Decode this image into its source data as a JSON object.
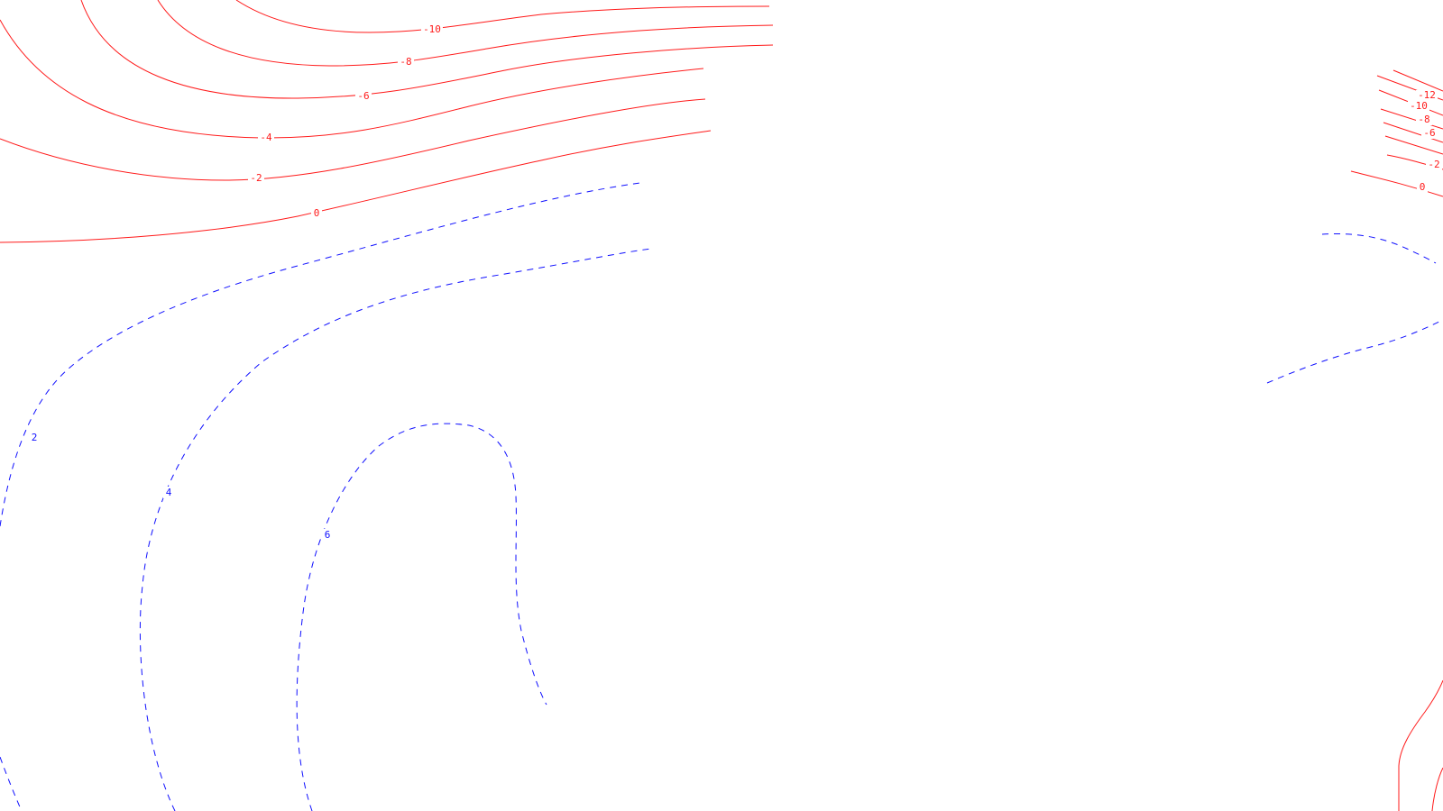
{
  "map": {
    "colors": {
      "negative_contour": "#ff1a1a",
      "positive_contour": "#1010ff",
      "background": "#ffffff"
    },
    "negative_line_style": "solid",
    "positive_line_style": "dashed",
    "labels": {
      "m10": "-10",
      "m8": "-8",
      "m6": "-6",
      "m4": "-4",
      "m2": "-2",
      "z0": "0",
      "p2": "2",
      "p4": "4",
      "p6": "6",
      "r_m12": "-12",
      "r_m10": "-10",
      "r_m8": "-8",
      "r_m6": "-6",
      "r_m2": "-2",
      "r_z0": "0"
    }
  }
}
